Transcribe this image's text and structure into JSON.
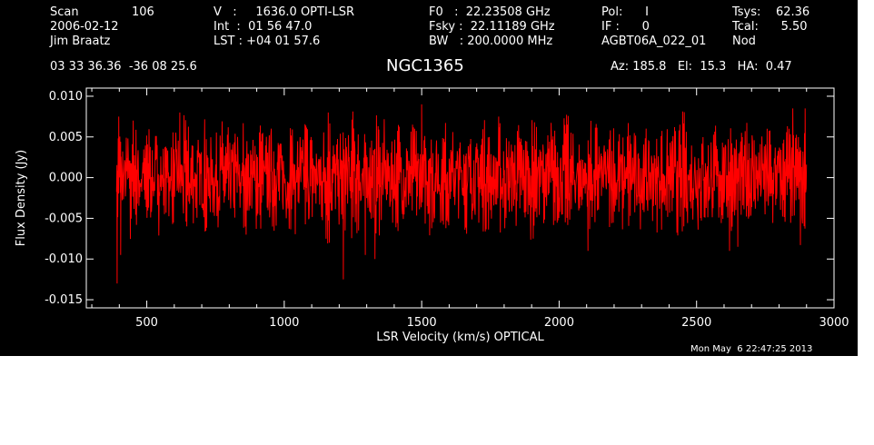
{
  "header": {
    "scan_label": "Scan",
    "scan_value": "106",
    "date": "2006-02-12",
    "observer": "Jim Braatz",
    "coords": "03 33 36.36  -36 08 25.6",
    "velocity_line": "V   :     1636.0 OPTI-LSR",
    "int_line": "Int  :  01 56 47.0",
    "lst_line": "LST : +04 01 57.6",
    "f0_line": "F0   :  22.23508 GHz",
    "fsky_line": "Fsky :  22.11189 GHz",
    "bw_line": "BW   : 200.0000 MHz",
    "pol_line": "Pol:      I",
    "if_line": "IF :      0",
    "project": "AGBT06A_022_01",
    "tsys_line": "Tsys:    62.36",
    "tcal_line": "Tcal:      5.50",
    "mode": "Nod",
    "source": "NGC1365",
    "az_el_ha": "Az: 185.8   El:  15.3   HA:  0.47"
  },
  "timestamp": "Mon May  6 22:47:25 2013",
  "colors": {
    "background": "#000000",
    "trace": "#ff0000",
    "axes": "#ffffff"
  },
  "chart_data": {
    "type": "line",
    "title": "NGC1365",
    "xlabel": "LSR Velocity (km/s) OPTICAL",
    "ylabel": "Flux Density (Jy)",
    "xlim": [
      280,
      3000
    ],
    "ylim": [
      -0.016,
      0.011
    ],
    "xticks": [
      500,
      1000,
      1500,
      2000,
      2500,
      3000
    ],
    "xtick_labels": [
      "500",
      "1000",
      "1500",
      "2000",
      "2500",
      "3000"
    ],
    "yticks": [
      0.01,
      0.005,
      0.0,
      -0.005,
      -0.01,
      -0.015
    ],
    "ytick_labels": [
      "0.010",
      "0.005",
      "0.000",
      "-0.005",
      "-0.010",
      "-0.015"
    ],
    "grid": false,
    "series": [
      {
        "x_start": 390,
        "x_end": 2900,
        "values": [
          0.005,
          -0.003,
          0.002,
          -0.008,
          0.004,
          0.001,
          -0.005,
          0.006,
          -0.002,
          0.003,
          -0.006,
          0.0,
          0.005,
          -0.004,
          0.002,
          -0.001,
          0.006,
          -0.005,
          0.003,
          -0.002,
          0.001,
          -0.007,
          0.004,
          0.002,
          -0.003,
          0.005,
          -0.004,
          0.0,
          0.003,
          -0.005,
          0.006,
          -0.002,
          0.001,
          -0.004,
          0.005,
          -0.003,
          0.002,
          -0.006,
          0.004,
          0.0,
          -0.002,
          0.005,
          -0.005,
          0.003,
          -0.001,
          0.006,
          -0.004,
          0.002,
          -0.003,
          0.004,
          -0.008,
          0.003,
          0.001,
          -0.004,
          0.005,
          -0.002,
          0.007,
          -0.005,
          0.002,
          -0.003,
          0.004,
          -0.001,
          0.006,
          -0.006,
          0.003,
          0.0,
          -0.004,
          0.005,
          -0.002,
          0.003,
          -0.005,
          0.004,
          0.001,
          -0.003,
          0.006,
          -0.004,
          0.002,
          -0.002,
          0.005,
          -0.005,
          0.003,
          -0.001,
          0.004,
          -0.006,
          0.002,
          0.001,
          -0.003,
          0.005,
          -0.004,
          0.003,
          -0.002,
          0.006,
          -0.005,
          0.002,
          0.0,
          -0.004,
          0.005,
          -0.003,
          0.002,
          -0.006,
          0.004,
          0.001,
          -0.002,
          0.005,
          -0.004,
          0.003,
          -0.001,
          0.006,
          -0.005,
          0.002,
          -0.003,
          0.004,
          -0.002,
          0.005,
          -0.006,
          0.003,
          0.001,
          -0.004,
          0.005,
          -0.002,
          0.003,
          -0.005,
          0.006,
          -0.003,
          0.002,
          -0.004,
          0.004,
          0.0,
          -0.002,
          0.005,
          -0.005,
          0.003,
          -0.001,
          0.004,
          -0.006,
          0.007,
          -0.003,
          0.002,
          0.001,
          -0.004,
          0.005,
          -0.002,
          0.003,
          -0.005,
          0.004,
          -0.001,
          0.006,
          -0.004,
          0.002,
          -0.003,
          0.005,
          -0.005,
          0.003,
          0.0,
          -0.002,
          0.004,
          -0.006,
          0.002,
          0.001,
          -0.003,
          0.005,
          -0.004,
          0.003,
          -0.008,
          0.004,
          -0.002
        ]
      }
    ],
    "spikes": [
      {
        "x": 392,
        "y": -0.013
      },
      {
        "x": 398,
        "y": 0.0075
      },
      {
        "x": 405,
        "y": -0.0095
      },
      {
        "x": 620,
        "y": 0.008
      },
      {
        "x": 1215,
        "y": -0.0125
      },
      {
        "x": 1160,
        "y": 0.008
      },
      {
        "x": 1295,
        "y": -0.0095
      },
      {
        "x": 1330,
        "y": -0.01
      },
      {
        "x": 1500,
        "y": 0.009
      },
      {
        "x": 1780,
        "y": 0.0075
      },
      {
        "x": 2105,
        "y": -0.009
      },
      {
        "x": 2620,
        "y": -0.009
      },
      {
        "x": 2650,
        "y": -0.0085
      },
      {
        "x": 2850,
        "y": 0.0085
      },
      {
        "x": 2895,
        "y": 0.0085
      }
    ]
  }
}
